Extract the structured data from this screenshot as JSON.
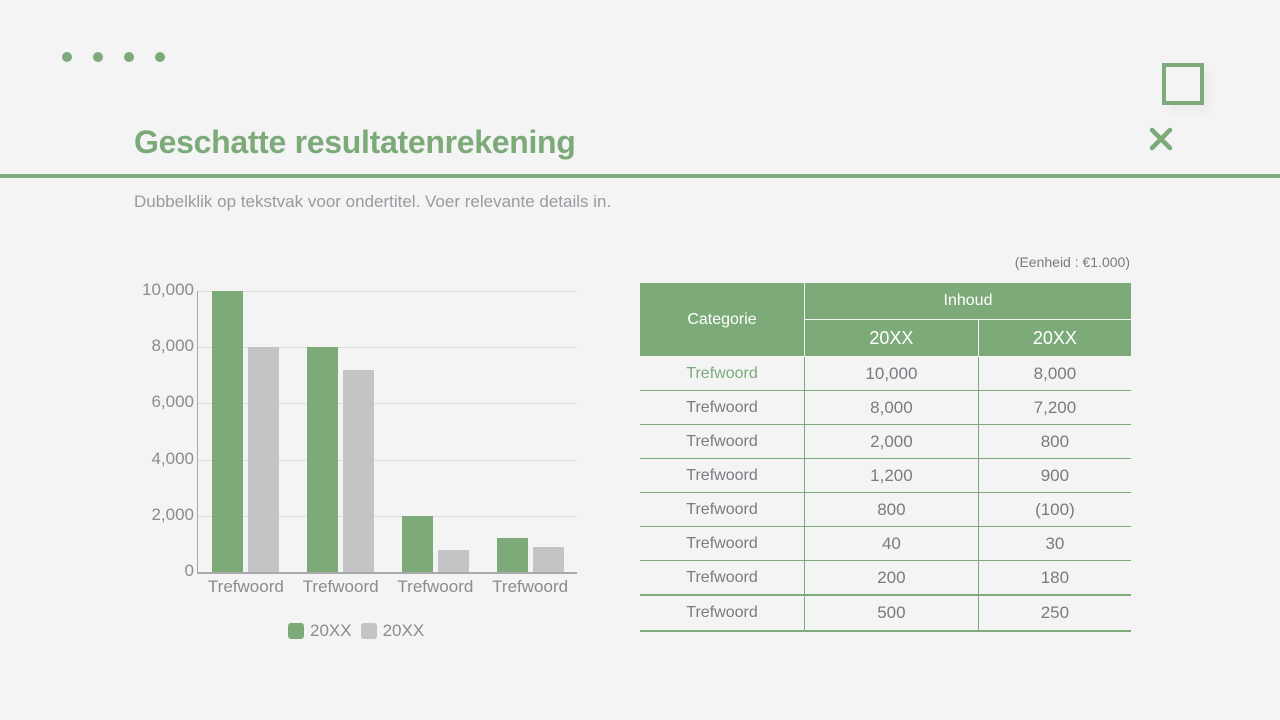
{
  "slide": {
    "title": "Geschatte resultatenrekening",
    "subtitle": "Dubbelklik op tekstvak voor ondertitel. Voer relevante details in.",
    "accent_color": "#7daa79",
    "secondary_color": "#c4c3c6",
    "background_color": "#f4f4f5"
  },
  "decorations": {
    "dots_count": 4,
    "icons": [
      "square-outline-icon",
      "close-x-icon"
    ]
  },
  "chart_data": {
    "type": "bar",
    "title": "",
    "xlabel": "",
    "ylabel": "",
    "categories": [
      "Trefwoord",
      "Trefwoord",
      "Trefwoord",
      "Trefwoord"
    ],
    "series": [
      {
        "name": "20XX",
        "color": "#7daa79",
        "values": [
          10000,
          8000,
          2000,
          1200
        ]
      },
      {
        "name": "20XX",
        "color": "#c4c3c6",
        "values": [
          8000,
          7200,
          800,
          900
        ]
      }
    ],
    "ylim": [
      0,
      10000
    ],
    "yticks": [
      "0",
      "2,000",
      "4,000",
      "6,000",
      "8,000",
      "10,000"
    ],
    "grid": true,
    "legend_position": "bottom"
  },
  "table": {
    "unit_note": "(Eenheid : €1.000)",
    "header": {
      "category": "Categorie",
      "group": "Inhoud",
      "years": [
        "20XX",
        "20XX"
      ]
    },
    "rows": [
      {
        "label": "Trefwoord",
        "v1": "10,000",
        "v2": "8,000"
      },
      {
        "label": "Trefwoord",
        "v1": "8,000",
        "v2": "7,200"
      },
      {
        "label": "Trefwoord",
        "v1": "2,000",
        "v2": "800"
      },
      {
        "label": "Trefwoord",
        "v1": "1,200",
        "v2": "900"
      },
      {
        "label": "Trefwoord",
        "v1": "800",
        "v2": "(100)"
      },
      {
        "label": "Trefwoord",
        "v1": "40",
        "v2": "30"
      },
      {
        "label": "Trefwoord",
        "v1": "200",
        "v2": "180"
      },
      {
        "label": "Trefwoord",
        "v1": "500",
        "v2": "250"
      }
    ]
  }
}
